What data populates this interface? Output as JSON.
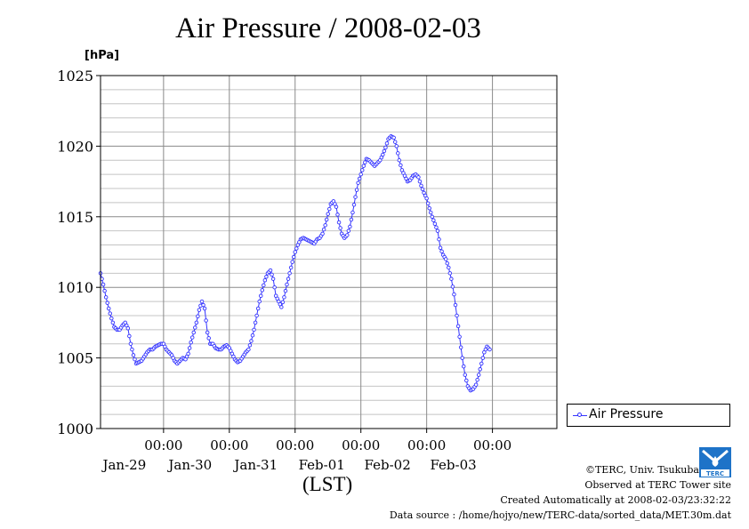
{
  "chart_data": {
    "type": "line",
    "title": "Air Pressure / 2008-02-03",
    "unit": "[hPa]",
    "xlabel": "(LST)",
    "ylim": [
      1000,
      1025
    ],
    "yticks": [
      1000,
      1005,
      1010,
      1015,
      1020,
      1025
    ],
    "y_minor_step": 1,
    "xlim": [
      "2008-01-28T01:00",
      "2008-02-03T23:30"
    ],
    "xticks": [
      {
        "time": "00:00",
        "date": "Jan-29"
      },
      {
        "time": "00:00",
        "date": "Jan-30"
      },
      {
        "time": "00:00",
        "date": "Jan-31"
      },
      {
        "time": "00:00",
        "date": "Feb-01"
      },
      {
        "time": "00:00",
        "date": "Feb-02"
      },
      {
        "time": "00:00",
        "date": "Feb-03"
      }
    ],
    "grid": true,
    "legend_position": "right",
    "series": [
      {
        "name": "Air Pressure",
        "color": "#3333ff",
        "marker": "open-circle",
        "interval": "30min",
        "points": [
          [
            "2008-01-28T01:00",
            1011.0
          ],
          [
            "2008-01-28T02:00",
            1010.2
          ],
          [
            "2008-01-28T03:00",
            1009.3
          ],
          [
            "2008-01-28T04:00",
            1008.5
          ],
          [
            "2008-01-28T05:00",
            1007.8
          ],
          [
            "2008-01-28T06:00",
            1007.2
          ],
          [
            "2008-01-28T07:00",
            1007.0
          ],
          [
            "2008-01-28T08:00",
            1007.0
          ],
          [
            "2008-01-28T09:00",
            1007.3
          ],
          [
            "2008-01-28T10:00",
            1007.5
          ],
          [
            "2008-01-28T11:00",
            1007.1
          ],
          [
            "2008-01-28T12:00",
            1006.0
          ],
          [
            "2008-01-28T13:00",
            1005.2
          ],
          [
            "2008-01-28T14:00",
            1004.6
          ],
          [
            "2008-01-28T15:00",
            1004.7
          ],
          [
            "2008-01-28T16:00",
            1004.8
          ],
          [
            "2008-01-28T17:00",
            1005.1
          ],
          [
            "2008-01-28T18:00",
            1005.4
          ],
          [
            "2008-01-28T19:00",
            1005.6
          ],
          [
            "2008-01-28T20:00",
            1005.6
          ],
          [
            "2008-01-28T21:00",
            1005.8
          ],
          [
            "2008-01-28T22:00",
            1005.9
          ],
          [
            "2008-01-28T23:00",
            1006.0
          ],
          [
            "2008-01-29T00:00",
            1006.0
          ],
          [
            "2008-01-29T01:00",
            1005.6
          ],
          [
            "2008-01-29T02:00",
            1005.4
          ],
          [
            "2008-01-29T03:00",
            1005.2
          ],
          [
            "2008-01-29T04:00",
            1004.8
          ],
          [
            "2008-01-29T05:00",
            1004.6
          ],
          [
            "2008-01-29T06:00",
            1004.8
          ],
          [
            "2008-01-29T07:00",
            1005.0
          ],
          [
            "2008-01-29T08:00",
            1004.9
          ],
          [
            "2008-01-29T09:00",
            1005.3
          ],
          [
            "2008-01-29T10:00",
            1006.1
          ],
          [
            "2008-01-29T11:00",
            1006.8
          ],
          [
            "2008-01-29T12:00",
            1007.5
          ],
          [
            "2008-01-29T13:00",
            1008.4
          ],
          [
            "2008-01-29T14:00",
            1009.0
          ],
          [
            "2008-01-29T15:00",
            1008.5
          ],
          [
            "2008-01-29T16:00",
            1006.8
          ],
          [
            "2008-01-29T17:00",
            1006.0
          ],
          [
            "2008-01-29T18:00",
            1006.0
          ],
          [
            "2008-01-29T19:00",
            1005.7
          ],
          [
            "2008-01-29T20:00",
            1005.6
          ],
          [
            "2008-01-29T21:00",
            1005.6
          ],
          [
            "2008-01-29T22:00",
            1005.8
          ],
          [
            "2008-01-29T23:00",
            1005.9
          ],
          [
            "2008-01-30T00:00",
            1005.7
          ],
          [
            "2008-01-30T01:00",
            1005.3
          ],
          [
            "2008-01-30T02:00",
            1004.9
          ],
          [
            "2008-01-30T03:00",
            1004.7
          ],
          [
            "2008-01-30T04:00",
            1004.8
          ],
          [
            "2008-01-30T05:00",
            1005.1
          ],
          [
            "2008-01-30T06:00",
            1005.4
          ],
          [
            "2008-01-30T07:00",
            1005.6
          ],
          [
            "2008-01-30T08:00",
            1006.2
          ],
          [
            "2008-01-30T09:00",
            1007.0
          ],
          [
            "2008-01-30T10:00",
            1008.0
          ],
          [
            "2008-01-30T11:00",
            1009.0
          ],
          [
            "2008-01-30T12:00",
            1009.8
          ],
          [
            "2008-01-30T13:00",
            1010.5
          ],
          [
            "2008-01-30T14:00",
            1011.0
          ],
          [
            "2008-01-30T15:00",
            1011.2
          ],
          [
            "2008-01-30T16:00",
            1010.6
          ],
          [
            "2008-01-30T17:00",
            1009.4
          ],
          [
            "2008-01-30T18:00",
            1009.0
          ],
          [
            "2008-01-30T19:00",
            1008.6
          ],
          [
            "2008-01-30T20:00",
            1009.3
          ],
          [
            "2008-01-30T21:00",
            1010.2
          ],
          [
            "2008-01-30T22:00",
            1011.0
          ],
          [
            "2008-01-30T23:00",
            1011.8
          ],
          [
            "2008-01-31T00:00",
            1012.5
          ],
          [
            "2008-01-31T01:00",
            1013.0
          ],
          [
            "2008-01-31T02:00",
            1013.4
          ],
          [
            "2008-01-31T03:00",
            1013.5
          ],
          [
            "2008-01-31T04:00",
            1013.4
          ],
          [
            "2008-01-31T05:00",
            1013.3
          ],
          [
            "2008-01-31T06:00",
            1013.2
          ],
          [
            "2008-01-31T07:00",
            1013.1
          ],
          [
            "2008-01-31T08:00",
            1013.4
          ],
          [
            "2008-01-31T09:00",
            1013.5
          ],
          [
            "2008-01-31T10:00",
            1013.8
          ],
          [
            "2008-01-31T11:00",
            1014.4
          ],
          [
            "2008-01-31T12:00",
            1015.2
          ],
          [
            "2008-01-31T13:00",
            1015.9
          ],
          [
            "2008-01-31T14:00",
            1016.1
          ],
          [
            "2008-01-31T15:00",
            1015.7
          ],
          [
            "2008-01-31T16:00",
            1014.6
          ],
          [
            "2008-01-31T17:00",
            1013.8
          ],
          [
            "2008-01-31T18:00",
            1013.5
          ],
          [
            "2008-01-31T19:00",
            1013.7
          ],
          [
            "2008-01-31T20:00",
            1014.3
          ],
          [
            "2008-01-31T21:00",
            1015.3
          ],
          [
            "2008-01-31T22:00",
            1016.4
          ],
          [
            "2008-01-31T23:00",
            1017.4
          ],
          [
            "2008-02-01T00:00",
            1018.0
          ],
          [
            "2008-02-01T01:00",
            1018.6
          ],
          [
            "2008-02-01T02:00",
            1019.1
          ],
          [
            "2008-02-01T03:00",
            1019.0
          ],
          [
            "2008-02-01T04:00",
            1018.8
          ],
          [
            "2008-02-01T05:00",
            1018.6
          ],
          [
            "2008-02-01T06:00",
            1018.8
          ],
          [
            "2008-02-01T07:00",
            1019.0
          ],
          [
            "2008-02-01T08:00",
            1019.4
          ],
          [
            "2008-02-01T09:00",
            1019.9
          ],
          [
            "2008-02-01T10:00",
            1020.5
          ],
          [
            "2008-02-01T11:00",
            1020.7
          ],
          [
            "2008-02-01T12:00",
            1020.6
          ],
          [
            "2008-02-01T13:00",
            1020.0
          ],
          [
            "2008-02-01T14:00",
            1019.0
          ],
          [
            "2008-02-01T15:00",
            1018.3
          ],
          [
            "2008-02-01T16:00",
            1017.9
          ],
          [
            "2008-02-01T17:00",
            1017.5
          ],
          [
            "2008-02-01T18:00",
            1017.6
          ],
          [
            "2008-02-01T19:00",
            1017.9
          ],
          [
            "2008-02-01T20:00",
            1018.0
          ],
          [
            "2008-02-01T21:00",
            1017.8
          ],
          [
            "2008-02-01T22:00",
            1017.2
          ],
          [
            "2008-02-01T23:00",
            1016.7
          ],
          [
            "2008-02-02T00:00",
            1016.3
          ],
          [
            "2008-02-02T01:00",
            1015.6
          ],
          [
            "2008-02-02T02:00",
            1015.0
          ],
          [
            "2008-02-02T03:00",
            1014.5
          ],
          [
            "2008-02-02T04:00",
            1014.0
          ],
          [
            "2008-02-02T05:00",
            1012.8
          ],
          [
            "2008-02-02T06:00",
            1012.3
          ],
          [
            "2008-02-02T07:00",
            1012.0
          ],
          [
            "2008-02-02T08:00",
            1011.4
          ],
          [
            "2008-02-02T09:00",
            1010.6
          ],
          [
            "2008-02-02T10:00",
            1009.5
          ],
          [
            "2008-02-02T11:00",
            1008.0
          ],
          [
            "2008-02-02T12:00",
            1006.5
          ],
          [
            "2008-02-02T13:00",
            1005.0
          ],
          [
            "2008-02-02T14:00",
            1003.8
          ],
          [
            "2008-02-02T15:00",
            1003.0
          ],
          [
            "2008-02-02T16:00",
            1002.7
          ],
          [
            "2008-02-02T17:00",
            1002.8
          ],
          [
            "2008-02-02T18:00",
            1003.1
          ],
          [
            "2008-02-02T19:00",
            1003.8
          ],
          [
            "2008-02-02T20:00",
            1004.6
          ],
          [
            "2008-02-02T21:00",
            1005.4
          ],
          [
            "2008-02-02T22:00",
            1005.8
          ],
          [
            "2008-02-02T23:00",
            1005.6
          ]
        ]
      }
    ]
  },
  "legend": {
    "label": "Air Pressure"
  },
  "credits": {
    "copyright": "©TERC, Univ. Tsukuba",
    "observed": "Observed at TERC Tower site",
    "created": "Created Automatically at 2008-02-03/23:32:22",
    "source": "Data source : /home/hojyo/new/TERC-data/sorted_data/MET.30m.dat"
  },
  "logo": {
    "text": "TERC",
    "color": "#1e73c8"
  }
}
